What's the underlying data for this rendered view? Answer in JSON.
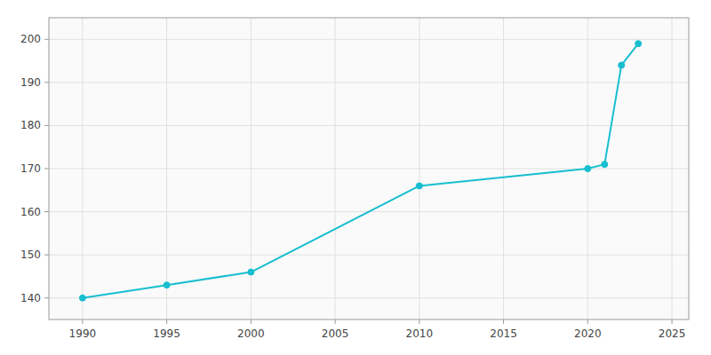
{
  "chart_data": {
    "type": "line",
    "x": [
      1990,
      1995,
      2000,
      2010,
      2020,
      2021,
      2022,
      2023
    ],
    "values": [
      140,
      143,
      146,
      166,
      170,
      171,
      194,
      199
    ],
    "color": "#17becf",
    "marker": "circle",
    "xlim": [
      1988,
      2026
    ],
    "ylim": [
      135,
      205
    ],
    "xticks": [
      1990,
      1995,
      2000,
      2005,
      2010,
      2015,
      2020,
      2025
    ],
    "yticks": [
      140,
      150,
      160,
      170,
      180,
      190,
      200
    ],
    "grid": true
  }
}
